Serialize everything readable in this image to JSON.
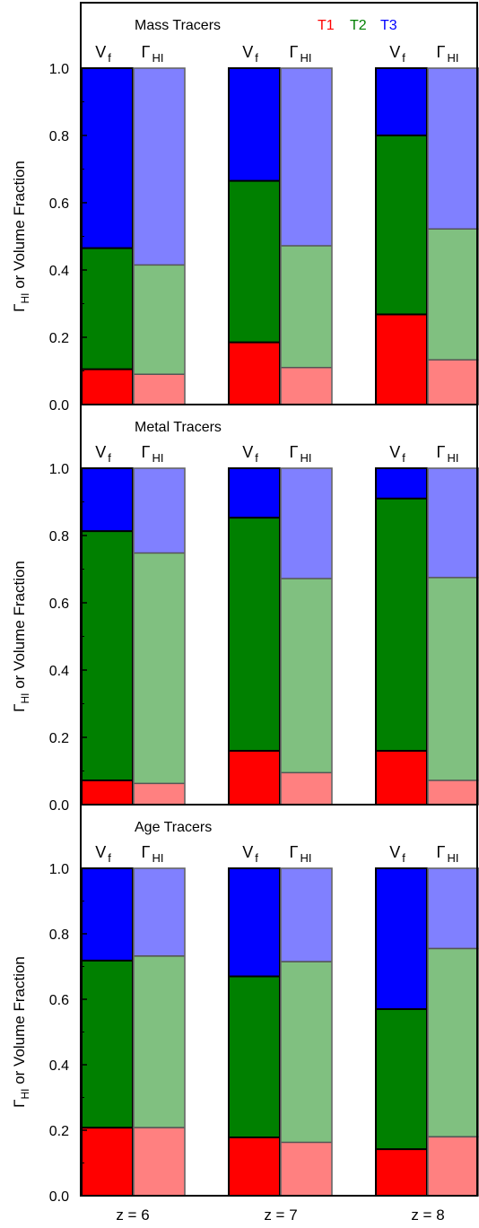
{
  "figure": {
    "ylabel_main": "Γ",
    "ylabel_sub": "HI",
    "ylabel_rest": " or Volume Fraction",
    "legend": [
      {
        "label": "T1",
        "color": "#ff0000"
      },
      {
        "label": "T2",
        "color": "#008000"
      },
      {
        "label": "T3",
        "color": "#0000ff"
      }
    ],
    "column_headers": {
      "vf_main": "V",
      "vf_sub": "f",
      "gamma_main": "Γ",
      "gamma_sub": "HI"
    },
    "x_ticks": [
      "z = 6",
      "z = 7",
      "z = 8"
    ],
    "y_ticks": [
      "0.0",
      "0.2",
      "0.4",
      "0.6",
      "0.8",
      "1.0"
    ]
  },
  "chart_data": [
    {
      "type": "bar",
      "stacked": true,
      "title": "Mass Tracers",
      "categories": [
        "z = 6",
        "z = 7",
        "z = 8"
      ],
      "ylim": [
        0,
        1.0
      ],
      "ylabel": "ΓHI or Volume Fraction",
      "series_names": [
        "T1",
        "T2",
        "T3"
      ],
      "colors": {
        "T1": "#ff0000",
        "T2": "#008000",
        "T3": "#0000ff"
      },
      "bars": [
        {
          "category": "z = 6",
          "quantity": "Vf",
          "cumulative": [
            0.105,
            0.465,
            1.0
          ]
        },
        {
          "category": "z = 6",
          "quantity": "ΓHI",
          "cumulative": [
            0.09,
            0.415,
            1.0
          ]
        },
        {
          "category": "z = 7",
          "quantity": "Vf",
          "cumulative": [
            0.185,
            0.665,
            1.0
          ]
        },
        {
          "category": "z = 7",
          "quantity": "ΓHI",
          "cumulative": [
            0.11,
            0.472,
            1.0
          ]
        },
        {
          "category": "z = 8",
          "quantity": "Vf",
          "cumulative": [
            0.268,
            0.8,
            1.0
          ]
        },
        {
          "category": "z = 8",
          "quantity": "ΓHI",
          "cumulative": [
            0.133,
            0.522,
            1.0
          ]
        }
      ]
    },
    {
      "type": "bar",
      "stacked": true,
      "title": "Metal Tracers",
      "categories": [
        "z = 6",
        "z = 7",
        "z = 8"
      ],
      "ylim": [
        0,
        1.0
      ],
      "ylabel": "ΓHI or Volume Fraction",
      "series_names": [
        "T1",
        "T2",
        "T3"
      ],
      "colors": {
        "T1": "#ff0000",
        "T2": "#008000",
        "T3": "#0000ff"
      },
      "bars": [
        {
          "category": "z = 6",
          "quantity": "Vf",
          "cumulative": [
            0.072,
            0.813,
            1.0
          ]
        },
        {
          "category": "z = 6",
          "quantity": "ΓHI",
          "cumulative": [
            0.063,
            0.748,
            1.0
          ]
        },
        {
          "category": "z = 7",
          "quantity": "Vf",
          "cumulative": [
            0.16,
            0.853,
            1.0
          ]
        },
        {
          "category": "z = 7",
          "quantity": "ΓHI",
          "cumulative": [
            0.095,
            0.672,
            1.0
          ]
        },
        {
          "category": "z = 8",
          "quantity": "Vf",
          "cumulative": [
            0.16,
            0.91,
            1.0
          ]
        },
        {
          "category": "z = 8",
          "quantity": "ΓHI",
          "cumulative": [
            0.072,
            0.675,
            1.0
          ]
        }
      ]
    },
    {
      "type": "bar",
      "stacked": true,
      "title": "Age Tracers",
      "categories": [
        "z = 6",
        "z = 7",
        "z = 8"
      ],
      "ylim": [
        0,
        1.0
      ],
      "ylabel": "ΓHI or Volume Fraction",
      "series_names": [
        "T1",
        "T2",
        "T3"
      ],
      "colors": {
        "T1": "#ff0000",
        "T2": "#008000",
        "T3": "#0000ff"
      },
      "bars": [
        {
          "category": "z = 6",
          "quantity": "Vf",
          "cumulative": [
            0.208,
            0.718,
            1.0
          ]
        },
        {
          "category": "z = 6",
          "quantity": "ΓHI",
          "cumulative": [
            0.208,
            0.732,
            1.0
          ]
        },
        {
          "category": "z = 7",
          "quantity": "Vf",
          "cumulative": [
            0.178,
            0.67,
            1.0
          ]
        },
        {
          "category": "z = 7",
          "quantity": "ΓHI",
          "cumulative": [
            0.163,
            0.715,
            1.0
          ]
        },
        {
          "category": "z = 8",
          "quantity": "Vf",
          "cumulative": [
            0.142,
            0.57,
            1.0
          ]
        },
        {
          "category": "z = 8",
          "quantity": "ΓHI",
          "cumulative": [
            0.18,
            0.755,
            1.0
          ]
        }
      ]
    }
  ]
}
